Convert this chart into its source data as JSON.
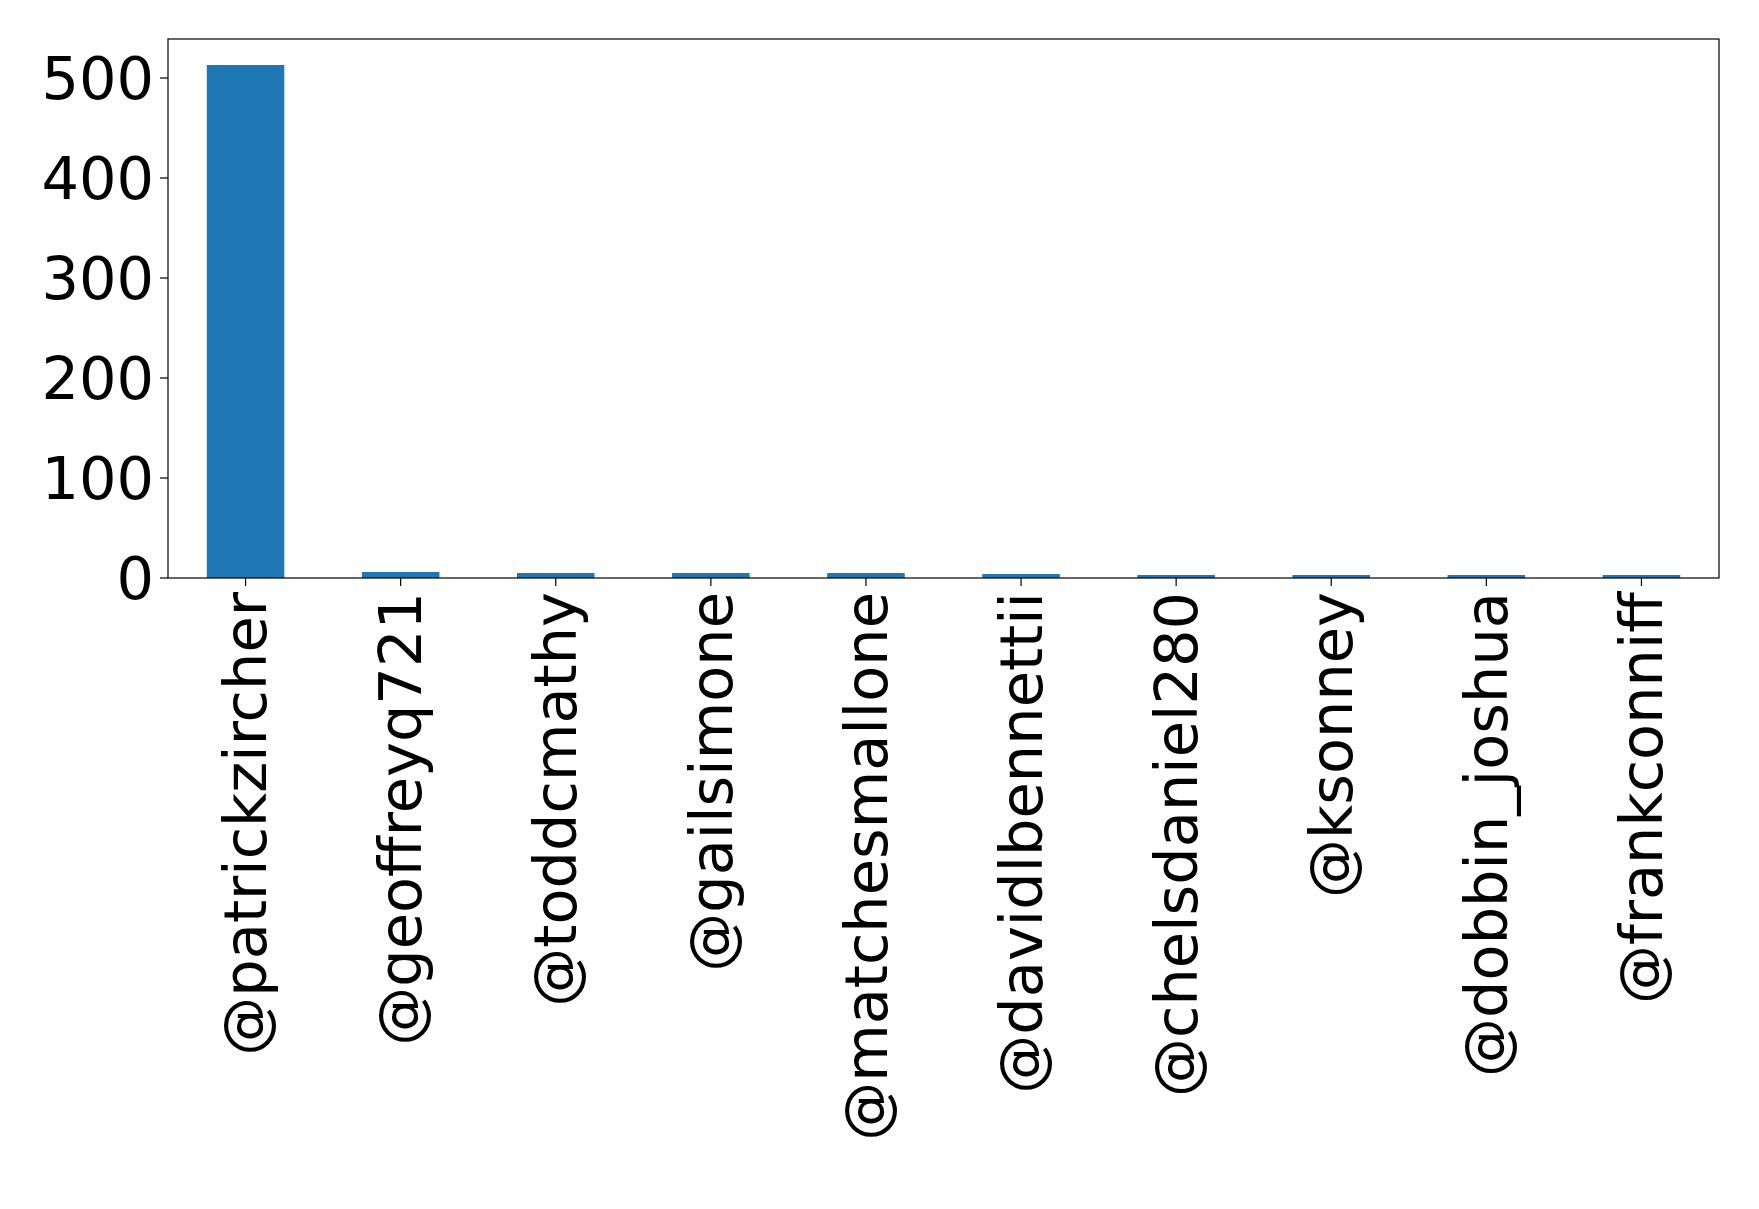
{
  "chart_data": {
    "type": "bar",
    "categories": [
      "@patrickzircher",
      "@geoffreyq721",
      "@toddcmathy",
      "@gailsimone",
      "@matchesmallone",
      "@davidlbennettii",
      "@chelsdaniel280",
      "@ksonney",
      "@dobbin_joshua",
      "@frankconniff"
    ],
    "values": [
      513,
      6,
      5,
      5,
      5,
      4,
      3,
      3,
      3,
      3
    ],
    "color": "#1f77b4",
    "ylim": [
      0,
      539
    ],
    "yticks": [
      0,
      100,
      200,
      300,
      400,
      500
    ]
  }
}
